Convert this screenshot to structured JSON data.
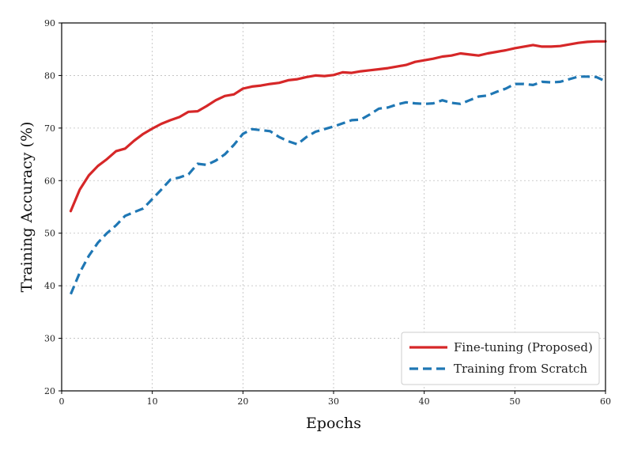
{
  "chart_data": {
    "type": "line",
    "xlabel": "Epochs",
    "ylabel": "Training Accuracy (%)",
    "xlim": [
      0,
      60
    ],
    "ylim": [
      20,
      90
    ],
    "xticks": [
      0,
      10,
      20,
      30,
      40,
      50,
      60
    ],
    "yticks": [
      20,
      30,
      40,
      50,
      60,
      70,
      80,
      90
    ],
    "grid": true,
    "legend_position": "lower-right",
    "series": [
      {
        "name": "Fine-tuning (Proposed)",
        "color": "#d62728",
        "style": "solid",
        "x": [
          1,
          2,
          3,
          4,
          5,
          6,
          7,
          8,
          9,
          10,
          11,
          12,
          13,
          14,
          15,
          16,
          17,
          18,
          19,
          20,
          21,
          22,
          23,
          24,
          25,
          26,
          27,
          28,
          29,
          30,
          31,
          32,
          33,
          34,
          35,
          36,
          37,
          38,
          39,
          40,
          41,
          42,
          43,
          44,
          45,
          46,
          47,
          48,
          49,
          50,
          51,
          52,
          53,
          54,
          55,
          56,
          57,
          58,
          59,
          60
        ],
        "values": [
          54.2,
          58.3,
          61.0,
          62.8,
          64.1,
          65.6,
          66.1,
          67.6,
          68.9,
          69.9,
          70.8,
          71.5,
          72.1,
          73.1,
          73.2,
          74.2,
          75.3,
          76.1,
          76.4,
          77.5,
          77.9,
          78.1,
          78.4,
          78.6,
          79.1,
          79.3,
          79.7,
          80.0,
          79.9,
          80.1,
          80.6,
          80.5,
          80.8,
          81.0,
          81.2,
          81.4,
          81.7,
          82.0,
          82.6,
          82.9,
          83.2,
          83.6,
          83.8,
          84.2,
          84.0,
          83.8,
          84.2,
          84.5,
          84.8,
          85.2,
          85.5,
          85.8,
          85.5,
          85.5,
          85.6,
          85.9,
          86.2,
          86.4,
          86.5,
          86.5
        ]
      },
      {
        "name": "Training from Scratch",
        "color": "#1f77b4",
        "style": "dashed",
        "x": [
          1,
          2,
          3,
          4,
          5,
          6,
          7,
          8,
          9,
          10,
          11,
          12,
          13,
          14,
          15,
          16,
          17,
          18,
          19,
          20,
          21,
          22,
          23,
          24,
          25,
          26,
          27,
          28,
          29,
          30,
          31,
          32,
          33,
          34,
          35,
          36,
          37,
          38,
          39,
          40,
          41,
          42,
          43,
          44,
          45,
          46,
          47,
          48,
          49,
          50,
          51,
          52,
          53,
          54,
          55,
          56,
          57,
          58,
          59,
          60
        ],
        "values": [
          38.4,
          42.5,
          45.7,
          48.2,
          50.0,
          51.5,
          53.3,
          54.0,
          54.7,
          56.5,
          58.3,
          60.2,
          60.6,
          61.2,
          63.2,
          63.0,
          63.8,
          65.0,
          66.8,
          68.9,
          69.8,
          69.6,
          69.4,
          68.3,
          67.5,
          66.9,
          68.3,
          69.3,
          69.8,
          70.3,
          70.9,
          71.5,
          71.6,
          72.6,
          73.7,
          73.9,
          74.5,
          74.9,
          74.7,
          74.6,
          74.7,
          75.3,
          74.8,
          74.6,
          75.3,
          76.0,
          76.2,
          76.9,
          77.5,
          78.4,
          78.4,
          78.2,
          78.8,
          78.7,
          78.8,
          79.3,
          79.8,
          79.8,
          79.7,
          78.9
        ]
      }
    ]
  }
}
